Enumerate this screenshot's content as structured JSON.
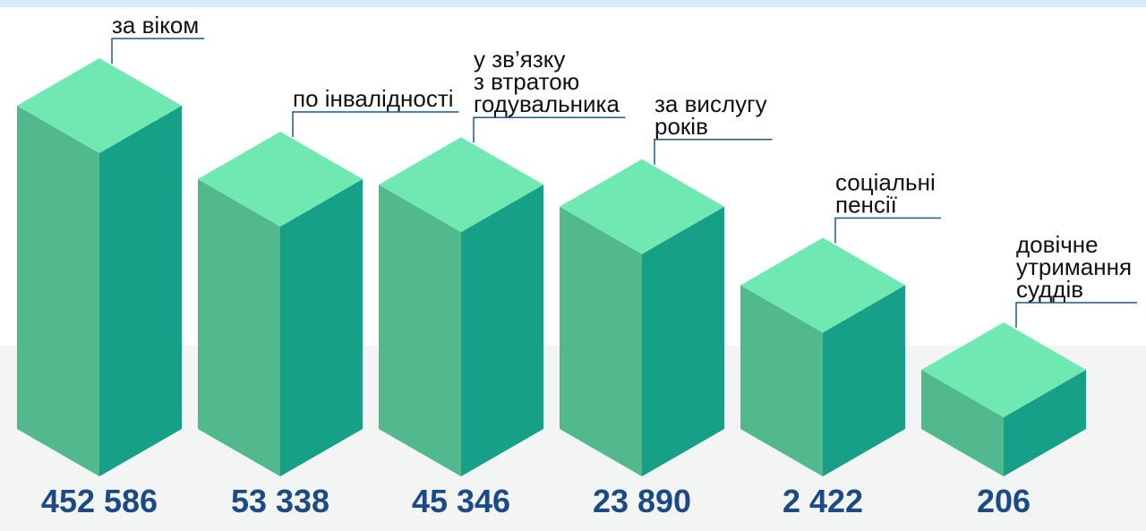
{
  "chart_data": {
    "type": "bar3d",
    "log_scale": true,
    "categories": [
      "за віком",
      "по інвалідності",
      "у зв’язку\nз втратою\nгодувальника",
      "за вислугу\nроків",
      "соціальні\nпенсії",
      "довічне\nутримання\nсуддів"
    ],
    "values": [
      452586,
      53338,
      45346,
      23890,
      2422,
      206
    ],
    "value_labels": [
      "452 586",
      "53 338",
      "45 346",
      "23 890",
      "2 422",
      "206"
    ],
    "colors": {
      "top": "#70e8b2",
      "left": "#52b88e",
      "right": "#17a088",
      "label": "#1c4a86",
      "leader": "#1c5a8a"
    }
  }
}
